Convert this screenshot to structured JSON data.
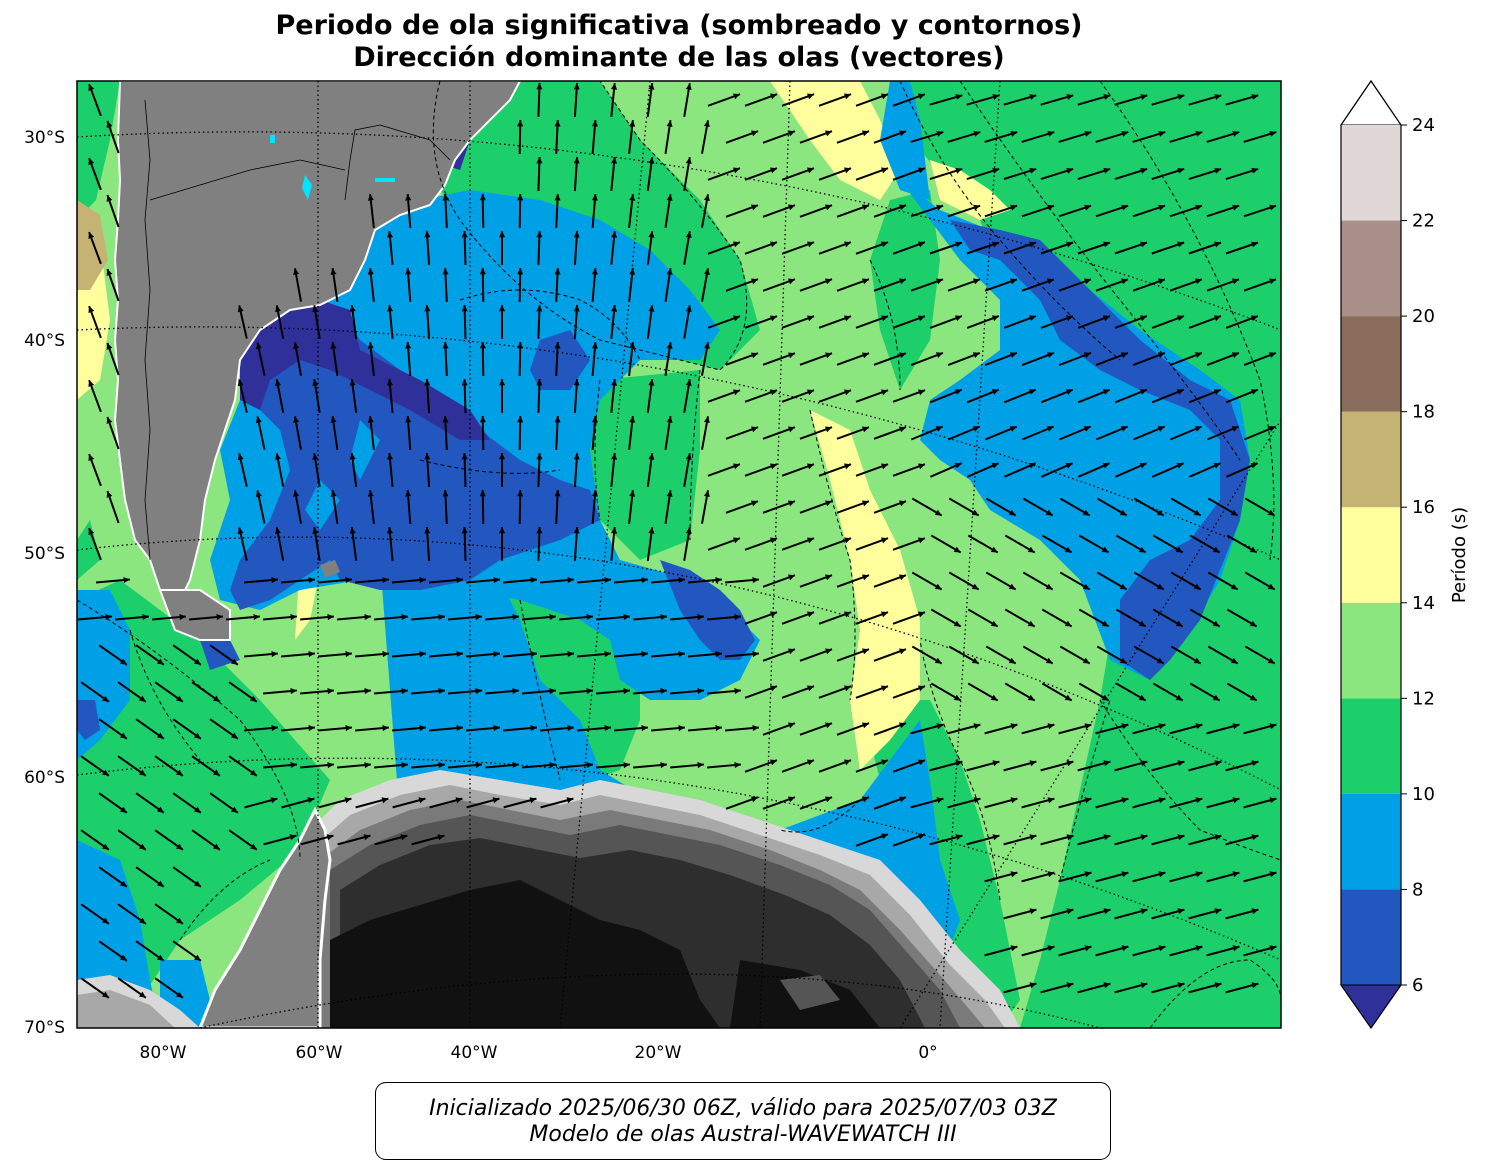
{
  "title": {
    "line1": "Periodo de ola significativa (sombreado y contornos)",
    "line2": "Dirección dominante de las olas (vectores)"
  },
  "map": {
    "lat_labels": [
      "30°S",
      "40°S",
      "50°S",
      "60°S",
      "70°S"
    ],
    "lon_labels": [
      "80°W",
      "60°W",
      "40°W",
      "20°W",
      "0°"
    ],
    "land_color": "#808080",
    "ice_colors": [
      "#111111",
      "#2e2e2e",
      "#555555",
      "#7a7a7a",
      "#a8a8a8",
      "#d8d8d8"
    ]
  },
  "colorbar": {
    "label": "Período (s)",
    "ticks": [
      "6",
      "8",
      "10",
      "12",
      "14",
      "16",
      "18",
      "20",
      "22",
      "24"
    ],
    "levels": [
      {
        "min": 6,
        "max": 8,
        "color": "#2257c0"
      },
      {
        "min": 8,
        "max": 10,
        "color": "#00a0e6"
      },
      {
        "min": 10,
        "max": 12,
        "color": "#1ccf6a"
      },
      {
        "min": 12,
        "max": 14,
        "color": "#8ce680"
      },
      {
        "min": 14,
        "max": 16,
        "color": "#fefe9c"
      },
      {
        "min": 16,
        "max": 18,
        "color": "#c5b374"
      },
      {
        "min": 18,
        "max": 20,
        "color": "#8a6c5c"
      },
      {
        "min": 20,
        "max": 22,
        "color": "#a89088"
      },
      {
        "min": 22,
        "max": 24,
        "color": "#e0d8d6"
      }
    ],
    "under_color": "#30309a",
    "over_color": "#ffffff"
  },
  "footer": {
    "line1": "Inicializado 2025/06/30 06Z, válido para 2025/07/03 03Z",
    "line2": "Modelo de olas Austral-WAVEWATCH III"
  }
}
